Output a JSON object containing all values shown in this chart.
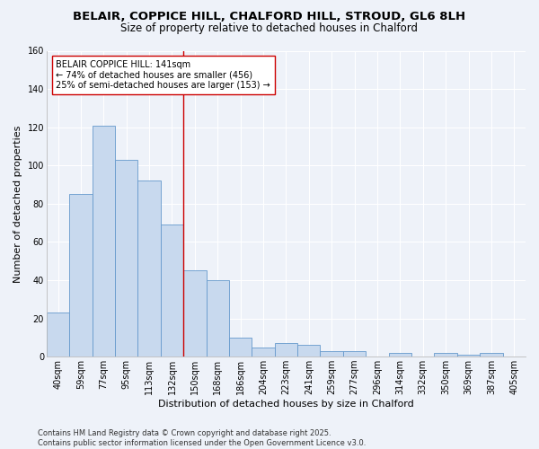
{
  "title_line1": "BELAIR, COPPICE HILL, CHALFORD HILL, STROUD, GL6 8LH",
  "title_line2": "Size of property relative to detached houses in Chalford",
  "xlabel": "Distribution of detached houses by size in Chalford",
  "ylabel": "Number of detached properties",
  "categories": [
    "40sqm",
    "59sqm",
    "77sqm",
    "95sqm",
    "113sqm",
    "132sqm",
    "150sqm",
    "168sqm",
    "186sqm",
    "204sqm",
    "223sqm",
    "241sqm",
    "259sqm",
    "277sqm",
    "296sqm",
    "314sqm",
    "332sqm",
    "350sqm",
    "369sqm",
    "387sqm",
    "405sqm"
  ],
  "values": [
    23,
    85,
    121,
    103,
    92,
    69,
    45,
    40,
    10,
    5,
    7,
    6,
    3,
    3,
    0,
    2,
    0,
    2,
    1,
    2,
    0
  ],
  "bar_color": "#c8d9ee",
  "bar_edge_color": "#6699cc",
  "bar_linewidth": 0.6,
  "vline_x_index": 5.5,
  "vline_color": "#cc0000",
  "annotation_text": "BELAIR COPPICE HILL: 141sqm\n← 74% of detached houses are smaller (456)\n25% of semi-detached houses are larger (153) →",
  "annotation_box_color": "#ffffff",
  "annotation_box_edge": "#cc0000",
  "ylim": [
    0,
    160
  ],
  "yticks": [
    0,
    20,
    40,
    60,
    80,
    100,
    120,
    140,
    160
  ],
  "bg_color": "#eef2f9",
  "plot_bg_color": "#eef2f9",
  "footer": "Contains HM Land Registry data © Crown copyright and database right 2025.\nContains public sector information licensed under the Open Government Licence v3.0.",
  "title_fontsize": 9.5,
  "subtitle_fontsize": 8.5,
  "axis_label_fontsize": 8,
  "tick_fontsize": 7,
  "annotation_fontsize": 7,
  "footer_fontsize": 6
}
